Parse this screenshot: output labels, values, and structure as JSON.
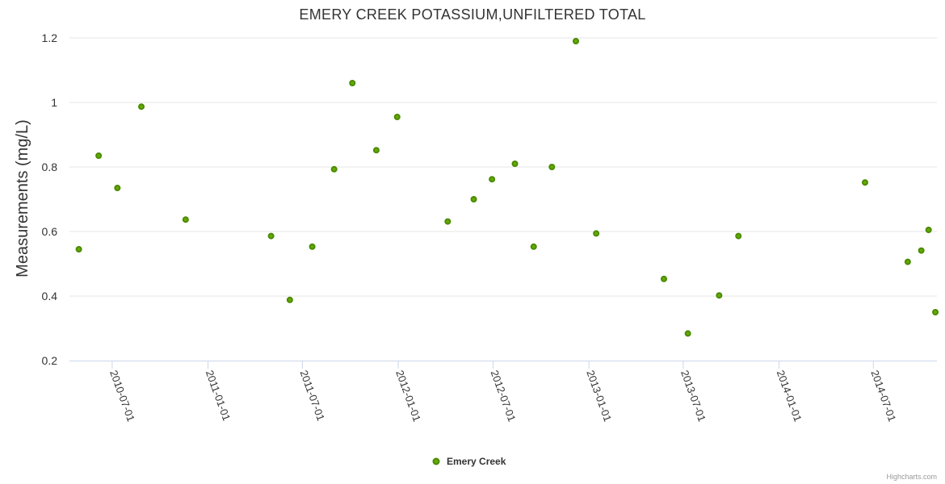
{
  "credits": "Highcharts.com",
  "colors": {
    "series": "#66aa00",
    "series_stroke": "#4a8a00"
  },
  "chart_data": {
    "type": "scatter",
    "title": "EMERY CREEK POTASSIUM,UNFILTERED TOTAL",
    "ylabel": "Measurements (mg/L)",
    "xlabel": "",
    "ylim": [
      0.2,
      1.2
    ],
    "yticks": [
      0.2,
      0.4,
      0.6,
      0.8,
      1,
      1.2
    ],
    "yticklabels": [
      "0.2",
      "0.4",
      "0.6",
      "0.8",
      "1",
      "1.2"
    ],
    "xlim": [
      "2010-04-10",
      "2014-10-31"
    ],
    "xticks": [
      "2010-07-01",
      "2011-01-01",
      "2011-07-01",
      "2012-01-01",
      "2012-07-01",
      "2013-01-01",
      "2013-07-01",
      "2014-01-01",
      "2014-07-01"
    ],
    "grid": true,
    "legend": "bottom-center",
    "series": [
      {
        "name": "Emery Creek",
        "color": "#66aa00",
        "points": [
          {
            "x": "2010-04-28",
            "y": 0.545
          },
          {
            "x": "2010-06-05",
            "y": 0.835
          },
          {
            "x": "2010-07-11",
            "y": 0.735
          },
          {
            "x": "2010-08-26",
            "y": 0.987
          },
          {
            "x": "2010-11-19",
            "y": 0.637
          },
          {
            "x": "2011-05-02",
            "y": 0.586
          },
          {
            "x": "2011-06-07",
            "y": 0.388
          },
          {
            "x": "2011-07-20",
            "y": 0.553
          },
          {
            "x": "2011-08-31",
            "y": 0.793
          },
          {
            "x": "2011-10-05",
            "y": 1.06
          },
          {
            "x": "2011-11-20",
            "y": 0.852
          },
          {
            "x": "2011-12-30",
            "y": 0.955
          },
          {
            "x": "2012-04-05",
            "y": 0.631
          },
          {
            "x": "2012-05-25",
            "y": 0.7
          },
          {
            "x": "2012-06-29",
            "y": 0.762
          },
          {
            "x": "2012-08-12",
            "y": 0.81
          },
          {
            "x": "2012-09-17",
            "y": 0.553
          },
          {
            "x": "2012-10-22",
            "y": 0.8
          },
          {
            "x": "2012-12-07",
            "y": 1.19
          },
          {
            "x": "2013-01-15",
            "y": 0.594
          },
          {
            "x": "2013-05-25",
            "y": 0.453
          },
          {
            "x": "2013-07-10",
            "y": 0.284
          },
          {
            "x": "2013-09-08",
            "y": 0.402
          },
          {
            "x": "2013-10-15",
            "y": 0.586
          },
          {
            "x": "2014-06-15",
            "y": 0.752
          },
          {
            "x": "2014-09-05",
            "y": 0.506
          },
          {
            "x": "2014-10-01",
            "y": 0.541
          },
          {
            "x": "2014-10-15",
            "y": 0.605
          },
          {
            "x": "2014-10-28",
            "y": 0.35
          }
        ]
      }
    ]
  }
}
